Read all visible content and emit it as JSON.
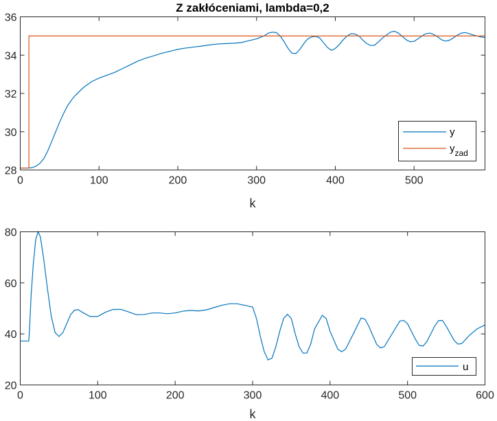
{
  "chart_data": [
    {
      "type": "line",
      "title": "Z zakłóceniami, lambda=0,2",
      "xlabel": "k",
      "ylabel": "",
      "xlim": [
        0,
        590
      ],
      "ylim": [
        28,
        36
      ],
      "xticks": [
        0,
        100,
        200,
        300,
        400,
        500
      ],
      "yticks": [
        28,
        30,
        32,
        34,
        36
      ],
      "legend_position": "bottom-right",
      "series": [
        {
          "name": "y",
          "color": "#0072BD",
          "points": [
            [
              0,
              28.1
            ],
            [
              10,
              28.1
            ],
            [
              15,
              28.12
            ],
            [
              20,
              28.2
            ],
            [
              25,
              28.35
            ],
            [
              30,
              28.6
            ],
            [
              35,
              29.0
            ],
            [
              40,
              29.5
            ],
            [
              45,
              30.0
            ],
            [
              50,
              30.5
            ],
            [
              55,
              30.95
            ],
            [
              60,
              31.35
            ],
            [
              65,
              31.65
            ],
            [
              70,
              31.9
            ],
            [
              80,
              32.3
            ],
            [
              90,
              32.6
            ],
            [
              100,
              32.8
            ],
            [
              110,
              32.95
            ],
            [
              120,
              33.1
            ],
            [
              130,
              33.3
            ],
            [
              140,
              33.5
            ],
            [
              150,
              33.7
            ],
            [
              160,
              33.85
            ],
            [
              170,
              33.97
            ],
            [
              180,
              34.1
            ],
            [
              190,
              34.2
            ],
            [
              200,
              34.3
            ],
            [
              210,
              34.37
            ],
            [
              220,
              34.42
            ],
            [
              230,
              34.47
            ],
            [
              240,
              34.53
            ],
            [
              250,
              34.58
            ],
            [
              260,
              34.6
            ],
            [
              270,
              34.62
            ],
            [
              280,
              34.65
            ],
            [
              290,
              34.75
            ],
            [
              300,
              34.85
            ],
            [
              305,
              34.93
            ],
            [
              310,
              35.02
            ],
            [
              315,
              35.15
            ],
            [
              320,
              35.2
            ],
            [
              325,
              35.18
            ],
            [
              330,
              35.0
            ],
            [
              335,
              34.7
            ],
            [
              340,
              34.35
            ],
            [
              345,
              34.1
            ],
            [
              350,
              34.08
            ],
            [
              355,
              34.3
            ],
            [
              360,
              34.6
            ],
            [
              365,
              34.85
            ],
            [
              370,
              34.95
            ],
            [
              375,
              34.98
            ],
            [
              380,
              34.9
            ],
            [
              385,
              34.65
            ],
            [
              390,
              34.4
            ],
            [
              395,
              34.25
            ],
            [
              400,
              34.35
            ],
            [
              405,
              34.55
            ],
            [
              410,
              34.8
            ],
            [
              415,
              35.0
            ],
            [
              420,
              35.12
            ],
            [
              425,
              35.1
            ],
            [
              430,
              35.0
            ],
            [
              435,
              34.78
            ],
            [
              440,
              34.6
            ],
            [
              445,
              34.5
            ],
            [
              450,
              34.52
            ],
            [
              455,
              34.7
            ],
            [
              460,
              34.9
            ],
            [
              465,
              35.05
            ],
            [
              470,
              35.2
            ],
            [
              475,
              35.25
            ],
            [
              480,
              35.15
            ],
            [
              485,
              34.98
            ],
            [
              490,
              34.8
            ],
            [
              495,
              34.7
            ],
            [
              500,
              34.72
            ],
            [
              505,
              34.85
            ],
            [
              510,
              35.0
            ],
            [
              515,
              35.12
            ],
            [
              520,
              35.15
            ],
            [
              525,
              35.08
            ],
            [
              530,
              34.95
            ],
            [
              535,
              34.8
            ],
            [
              540,
              34.73
            ],
            [
              545,
              34.78
            ],
            [
              550,
              34.9
            ],
            [
              555,
              35.05
            ],
            [
              560,
              35.15
            ],
            [
              565,
              35.18
            ],
            [
              570,
              35.12
            ],
            [
              575,
              35.05
            ],
            [
              580,
              35.0
            ],
            [
              585,
              34.95
            ],
            [
              590,
              34.92
            ]
          ]
        },
        {
          "name": "y",
          "sub": "zad",
          "color": "#D95319",
          "points": [
            [
              0,
              28.1
            ],
            [
              11,
              28.1
            ],
            [
              11,
              35.0
            ],
            [
              590,
              35.0
            ]
          ]
        }
      ]
    },
    {
      "type": "line",
      "title": "",
      "xlabel": "k",
      "ylabel": "",
      "xlim": [
        0,
        600
      ],
      "ylim": [
        20,
        80
      ],
      "xticks": [
        0,
        100,
        200,
        300,
        400,
        500,
        600
      ],
      "yticks": [
        20,
        40,
        60,
        80
      ],
      "legend_position": "bottom-right",
      "series": [
        {
          "name": "u",
          "color": "#0072BD",
          "points": [
            [
              0,
              37.2
            ],
            [
              11,
              37.2
            ],
            [
              12,
              42
            ],
            [
              14,
              55
            ],
            [
              17,
              68
            ],
            [
              20,
              77
            ],
            [
              23,
              80
            ],
            [
              26,
              78
            ],
            [
              30,
              70
            ],
            [
              35,
              58
            ],
            [
              40,
              47
            ],
            [
              45,
              40.5
            ],
            [
              50,
              39
            ],
            [
              55,
              40.5
            ],
            [
              60,
              44
            ],
            [
              65,
              47.5
            ],
            [
              70,
              49.3
            ],
            [
              75,
              49.5
            ],
            [
              80,
              48.5
            ],
            [
              90,
              46.8
            ],
            [
              100,
              46.8
            ],
            [
              110,
              48.5
            ],
            [
              120,
              49.6
            ],
            [
              130,
              49.6
            ],
            [
              140,
              48.6
            ],
            [
              150,
              47.5
            ],
            [
              160,
              47.6
            ],
            [
              170,
              48.2
            ],
            [
              180,
              48.2
            ],
            [
              190,
              47.9
            ],
            [
              200,
              48.2
            ],
            [
              210,
              48.9
            ],
            [
              220,
              49.2
            ],
            [
              230,
              49.0
            ],
            [
              240,
              49.4
            ],
            [
              250,
              50.3
            ],
            [
              260,
              51.2
            ],
            [
              270,
              51.8
            ],
            [
              280,
              51.8
            ],
            [
              290,
              51.2
            ],
            [
              300,
              50.5
            ],
            [
              305,
              46
            ],
            [
              310,
              39
            ],
            [
              315,
              33
            ],
            [
              320,
              29.8
            ],
            [
              325,
              30.5
            ],
            [
              330,
              35
            ],
            [
              335,
              41
            ],
            [
              340,
              46
            ],
            [
              345,
              47.7
            ],
            [
              350,
              46
            ],
            [
              355,
              40
            ],
            [
              360,
              35
            ],
            [
              365,
              32.5
            ],
            [
              370,
              32.5
            ],
            [
              375,
              36
            ],
            [
              380,
              42
            ],
            [
              390,
              47.3
            ],
            [
              395,
              46
            ],
            [
              400,
              41
            ],
            [
              410,
              34
            ],
            [
              415,
              33
            ],
            [
              420,
              34
            ],
            [
              430,
              40
            ],
            [
              440,
              46.2
            ],
            [
              445,
              45.8
            ],
            [
              450,
              43
            ],
            [
              460,
              36
            ],
            [
              465,
              34.5
            ],
            [
              470,
              35
            ],
            [
              480,
              40
            ],
            [
              490,
              45
            ],
            [
              495,
              45.3
            ],
            [
              500,
              44
            ],
            [
              510,
              38
            ],
            [
              515,
              35.5
            ],
            [
              520,
              35.2
            ],
            [
              525,
              37
            ],
            [
              535,
              43
            ],
            [
              540,
              45.2
            ],
            [
              545,
              45.3
            ],
            [
              550,
              43
            ],
            [
              560,
              37.5
            ],
            [
              565,
              36
            ],
            [
              570,
              36.2
            ],
            [
              580,
              39.5
            ],
            [
              590,
              42
            ],
            [
              600,
              43.5
            ]
          ]
        }
      ]
    }
  ]
}
